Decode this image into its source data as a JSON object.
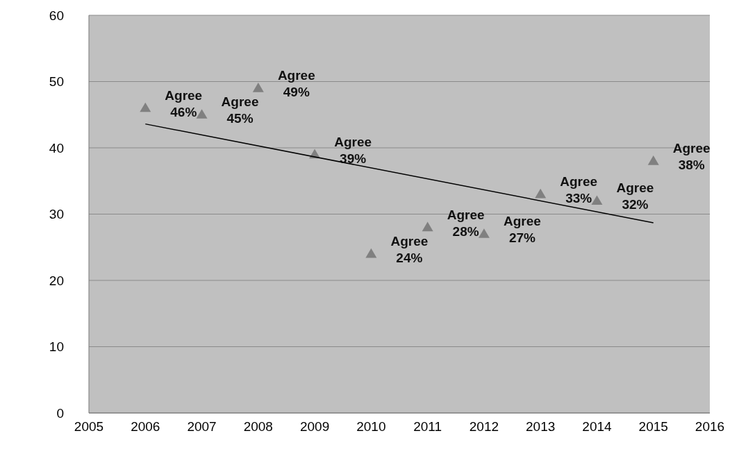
{
  "chart_data": {
    "type": "scatter",
    "x": [
      2006,
      2007,
      2008,
      2009,
      2010,
      2011,
      2012,
      2013,
      2014,
      2015
    ],
    "series": [
      {
        "color": "#808080",
        "marker": "triangle",
        "values": [
          46,
          45,
          49,
          39,
          24,
          28,
          27,
          33,
          32,
          38
        ],
        "value_labels": [
          "Agree 46%",
          "Agree 45%",
          "Agree 49%",
          "Agree 39%",
          "Agree 24%",
          "Agree 28%",
          "Agree 27%",
          "Agree 33%",
          "Agree 32%",
          "Agree 38%"
        ]
      },
      {
        "type": "line",
        "color": "#000000",
        "marker": "none",
        "x": [
          2006,
          2015
        ],
        "values": [
          43.6,
          28.7
        ]
      }
    ],
    "xlim": [
      2005,
      2016
    ],
    "xticks": [
      2005,
      2006,
      2007,
      2008,
      2009,
      2010,
      2011,
      2012,
      2013,
      2014,
      2015,
      2016
    ],
    "ylim": [
      0,
      60
    ],
    "yticks": [
      0,
      10,
      20,
      30,
      40,
      50,
      60
    ],
    "grid": "y"
  }
}
